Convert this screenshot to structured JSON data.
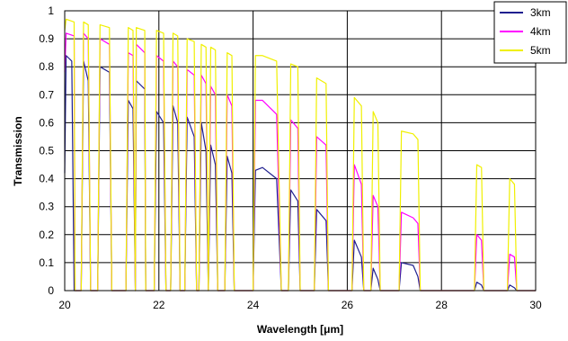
{
  "chart_data": {
    "type": "line",
    "xlabel": "Wavelength [μm]",
    "ylabel": "Transmission",
    "xlim": [
      20,
      30
    ],
    "ylim": [
      0,
      1
    ],
    "xticks": [
      "20",
      "22",
      "24",
      "26",
      "28",
      "30"
    ],
    "yticks": [
      "0",
      "0.1",
      "0.2",
      "0.3",
      "0.4",
      "0.5",
      "0.6",
      "0.7",
      "0.8",
      "0.9",
      "1"
    ],
    "grid": true,
    "legend_position": "top-right",
    "series": [
      {
        "name": "3km",
        "color": "#1f1f8f",
        "points": [
          [
            20.0,
            0.42
          ],
          [
            20.03,
            0.84
          ],
          [
            20.15,
            0.82
          ],
          [
            20.2,
            0.0
          ],
          [
            20.35,
            0.0
          ],
          [
            20.4,
            0.82
          ],
          [
            20.5,
            0.75
          ],
          [
            20.55,
            0.0
          ],
          [
            20.7,
            0.0
          ],
          [
            20.75,
            0.8
          ],
          [
            20.95,
            0.78
          ],
          [
            21.0,
            0.0
          ],
          [
            21.3,
            0.0
          ],
          [
            21.35,
            0.68
          ],
          [
            21.45,
            0.65
          ],
          [
            21.5,
            0.0
          ],
          [
            21.5,
            0.0
          ],
          [
            21.52,
            0.75
          ],
          [
            21.7,
            0.72
          ],
          [
            21.72,
            0.0
          ],
          [
            21.9,
            0.0
          ],
          [
            21.95,
            0.64
          ],
          [
            22.1,
            0.6
          ],
          [
            22.15,
            0.0
          ],
          [
            22.25,
            0.0
          ],
          [
            22.3,
            0.66
          ],
          [
            22.4,
            0.6
          ],
          [
            22.45,
            0.0
          ],
          [
            22.55,
            0.0
          ],
          [
            22.6,
            0.62
          ],
          [
            22.75,
            0.55
          ],
          [
            22.8,
            0.0
          ],
          [
            22.85,
            0.0
          ],
          [
            22.9,
            0.6
          ],
          [
            23.0,
            0.5
          ],
          [
            23.05,
            0.0
          ],
          [
            23.05,
            0.0
          ],
          [
            23.1,
            0.52
          ],
          [
            23.2,
            0.45
          ],
          [
            23.25,
            0.0
          ],
          [
            23.4,
            0.0
          ],
          [
            23.45,
            0.48
          ],
          [
            23.55,
            0.42
          ],
          [
            23.6,
            0.0
          ],
          [
            24.0,
            0.0
          ],
          [
            24.05,
            0.43
          ],
          [
            24.2,
            0.44
          ],
          [
            24.5,
            0.4
          ],
          [
            24.6,
            0.0
          ],
          [
            24.75,
            0.0
          ],
          [
            24.8,
            0.36
          ],
          [
            24.95,
            0.32
          ],
          [
            25.0,
            0.0
          ],
          [
            25.3,
            0.0
          ],
          [
            25.35,
            0.29
          ],
          [
            25.55,
            0.25
          ],
          [
            25.6,
            0.0
          ],
          [
            26.1,
            0.0
          ],
          [
            26.15,
            0.18
          ],
          [
            26.3,
            0.12
          ],
          [
            26.35,
            0.0
          ],
          [
            26.5,
            0.0
          ],
          [
            26.55,
            0.08
          ],
          [
            26.65,
            0.04
          ],
          [
            26.7,
            0.0
          ],
          [
            27.1,
            0.0
          ],
          [
            27.15,
            0.1
          ],
          [
            27.4,
            0.09
          ],
          [
            27.5,
            0.05
          ],
          [
            27.55,
            0.0
          ],
          [
            28.0,
            0.0
          ],
          [
            28.7,
            0.0
          ],
          [
            28.75,
            0.03
          ],
          [
            28.85,
            0.02
          ],
          [
            28.9,
            0.0
          ],
          [
            29.4,
            0.0
          ],
          [
            29.45,
            0.02
          ],
          [
            29.55,
            0.01
          ],
          [
            29.6,
            0.0
          ],
          [
            30.0,
            0.0
          ]
        ]
      },
      {
        "name": "4km",
        "color": "#ff00ff",
        "points": [
          [
            20.0,
            0.78
          ],
          [
            20.03,
            0.92
          ],
          [
            20.2,
            0.91
          ],
          [
            20.22,
            0.0
          ],
          [
            20.35,
            0.0
          ],
          [
            20.4,
            0.92
          ],
          [
            20.5,
            0.9
          ],
          [
            20.55,
            0.0
          ],
          [
            20.7,
            0.0
          ],
          [
            20.75,
            0.9
          ],
          [
            20.95,
            0.88
          ],
          [
            21.0,
            0.0
          ],
          [
            21.3,
            0.0
          ],
          [
            21.35,
            0.85
          ],
          [
            21.45,
            0.84
          ],
          [
            21.5,
            0.0
          ],
          [
            21.52,
            0.88
          ],
          [
            21.7,
            0.85
          ],
          [
            21.72,
            0.0
          ],
          [
            21.9,
            0.0
          ],
          [
            21.95,
            0.84
          ],
          [
            22.1,
            0.82
          ],
          [
            22.15,
            0.0
          ],
          [
            22.25,
            0.0
          ],
          [
            22.3,
            0.82
          ],
          [
            22.4,
            0.8
          ],
          [
            22.45,
            0.0
          ],
          [
            22.55,
            0.0
          ],
          [
            22.6,
            0.79
          ],
          [
            22.75,
            0.77
          ],
          [
            22.8,
            0.0
          ],
          [
            22.85,
            0.0
          ],
          [
            22.9,
            0.77
          ],
          [
            23.0,
            0.74
          ],
          [
            23.05,
            0.0
          ],
          [
            23.1,
            0.73
          ],
          [
            23.2,
            0.7
          ],
          [
            23.25,
            0.0
          ],
          [
            23.4,
            0.0
          ],
          [
            23.45,
            0.7
          ],
          [
            23.55,
            0.66
          ],
          [
            23.6,
            0.0
          ],
          [
            24.0,
            0.0
          ],
          [
            24.05,
            0.68
          ],
          [
            24.2,
            0.68
          ],
          [
            24.5,
            0.63
          ],
          [
            24.6,
            0.0
          ],
          [
            24.75,
            0.0
          ],
          [
            24.8,
            0.61
          ],
          [
            24.95,
            0.58
          ],
          [
            25.0,
            0.0
          ],
          [
            25.3,
            0.0
          ],
          [
            25.35,
            0.55
          ],
          [
            25.55,
            0.52
          ],
          [
            25.6,
            0.0
          ],
          [
            26.1,
            0.0
          ],
          [
            26.15,
            0.45
          ],
          [
            26.3,
            0.38
          ],
          [
            26.35,
            0.0
          ],
          [
            26.5,
            0.0
          ],
          [
            26.55,
            0.34
          ],
          [
            26.65,
            0.3
          ],
          [
            26.7,
            0.0
          ],
          [
            27.1,
            0.0
          ],
          [
            27.15,
            0.28
          ],
          [
            27.4,
            0.26
          ],
          [
            27.5,
            0.24
          ],
          [
            27.55,
            0.0
          ],
          [
            28.0,
            0.0
          ],
          [
            28.7,
            0.0
          ],
          [
            28.75,
            0.2
          ],
          [
            28.85,
            0.18
          ],
          [
            28.9,
            0.0
          ],
          [
            29.4,
            0.0
          ],
          [
            29.45,
            0.13
          ],
          [
            29.55,
            0.12
          ],
          [
            29.6,
            0.0
          ],
          [
            30.0,
            0.0
          ]
        ]
      },
      {
        "name": "5km",
        "color": "#f0f000",
        "points": [
          [
            20.0,
            0.93
          ],
          [
            20.03,
            0.97
          ],
          [
            20.2,
            0.96
          ],
          [
            20.22,
            0.0
          ],
          [
            20.35,
            0.0
          ],
          [
            20.4,
            0.96
          ],
          [
            20.5,
            0.95
          ],
          [
            20.55,
            0.0
          ],
          [
            20.7,
            0.0
          ],
          [
            20.75,
            0.95
          ],
          [
            20.95,
            0.94
          ],
          [
            21.0,
            0.0
          ],
          [
            21.3,
            0.0
          ],
          [
            21.35,
            0.94
          ],
          [
            21.45,
            0.93
          ],
          [
            21.5,
            0.0
          ],
          [
            21.52,
            0.94
          ],
          [
            21.7,
            0.93
          ],
          [
            21.72,
            0.0
          ],
          [
            21.9,
            0.0
          ],
          [
            21.95,
            0.93
          ],
          [
            22.1,
            0.92
          ],
          [
            22.15,
            0.0
          ],
          [
            22.25,
            0.0
          ],
          [
            22.3,
            0.92
          ],
          [
            22.4,
            0.91
          ],
          [
            22.45,
            0.0
          ],
          [
            22.55,
            0.0
          ],
          [
            22.6,
            0.9
          ],
          [
            22.75,
            0.89
          ],
          [
            22.8,
            0.0
          ],
          [
            22.85,
            0.0
          ],
          [
            22.9,
            0.88
          ],
          [
            23.0,
            0.87
          ],
          [
            23.05,
            0.0
          ],
          [
            23.1,
            0.87
          ],
          [
            23.2,
            0.86
          ],
          [
            23.25,
            0.0
          ],
          [
            23.4,
            0.0
          ],
          [
            23.45,
            0.85
          ],
          [
            23.55,
            0.84
          ],
          [
            23.6,
            0.0
          ],
          [
            24.0,
            0.0
          ],
          [
            24.05,
            0.84
          ],
          [
            24.2,
            0.84
          ],
          [
            24.5,
            0.82
          ],
          [
            24.6,
            0.0
          ],
          [
            24.75,
            0.0
          ],
          [
            24.8,
            0.81
          ],
          [
            24.95,
            0.8
          ],
          [
            25.0,
            0.0
          ],
          [
            25.3,
            0.0
          ],
          [
            25.35,
            0.76
          ],
          [
            25.55,
            0.74
          ],
          [
            25.6,
            0.0
          ],
          [
            26.1,
            0.0
          ],
          [
            26.15,
            0.69
          ],
          [
            26.3,
            0.66
          ],
          [
            26.35,
            0.0
          ],
          [
            26.5,
            0.0
          ],
          [
            26.55,
            0.64
          ],
          [
            26.65,
            0.6
          ],
          [
            26.7,
            0.0
          ],
          [
            27.1,
            0.0
          ],
          [
            27.15,
            0.57
          ],
          [
            27.4,
            0.56
          ],
          [
            27.5,
            0.54
          ],
          [
            27.55,
            0.0
          ],
          [
            28.0,
            0.0
          ],
          [
            28.7,
            0.0
          ],
          [
            28.75,
            0.45
          ],
          [
            28.85,
            0.44
          ],
          [
            28.9,
            0.0
          ],
          [
            29.4,
            0.0
          ],
          [
            29.45,
            0.4
          ],
          [
            29.55,
            0.38
          ],
          [
            29.6,
            0.0
          ],
          [
            30.0,
            0.0
          ]
        ]
      }
    ]
  }
}
